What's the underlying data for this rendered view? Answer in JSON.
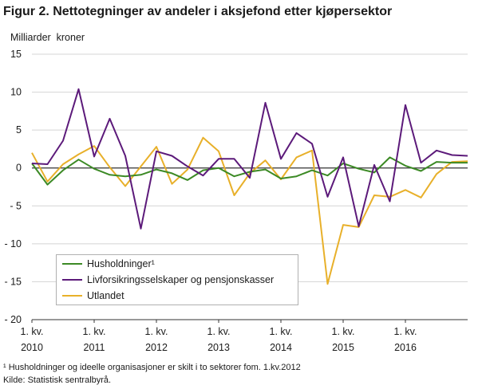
{
  "figure": {
    "title": "Figur 2. Nettotegninger av andeler i aksjefond etter kjøpersektor",
    "footnote": "¹ Husholdninger og ideelle organisasjoner er skilt i to sektorer fom. 1.kv.2012",
    "source": "Kilde: Statistisk sentralbyrå."
  },
  "chart_data": {
    "type": "line",
    "ylabel": "Milliarder  kroner",
    "ylim": [
      -20,
      15
    ],
    "yticks": [
      "15",
      "10",
      "5",
      "0",
      "- 5",
      "- 10",
      "- 15",
      "- 20"
    ],
    "ytick_values": [
      15,
      10,
      5,
      0,
      -5,
      -10,
      -15,
      -20
    ],
    "grid": true,
    "legend_position": "bottom-left",
    "x": [
      "2010Q1",
      "2010Q2",
      "2010Q3",
      "2010Q4",
      "2011Q1",
      "2011Q2",
      "2011Q3",
      "2011Q4",
      "2012Q1",
      "2012Q2",
      "2012Q3",
      "2012Q4",
      "2013Q1",
      "2013Q2",
      "2013Q3",
      "2013Q4",
      "2014Q1",
      "2014Q2",
      "2014Q3",
      "2014Q4",
      "2015Q1",
      "2015Q2",
      "2015Q3",
      "2015Q4",
      "2016Q1",
      "2016Q2",
      "2016Q3",
      "2016Q4",
      "2017Q1"
    ],
    "xticks": [
      {
        "kv": "1. kv.",
        "year": "2010"
      },
      {
        "kv": "1. kv.",
        "year": "2011"
      },
      {
        "kv": "1. kv.",
        "year": "2012"
      },
      {
        "kv": "1. kv.",
        "year": "2013"
      },
      {
        "kv": "1. kv.",
        "year": "2014"
      },
      {
        "kv": "1. kv.",
        "year": "2015"
      },
      {
        "kv": "1. kv.",
        "year": "2016"
      }
    ],
    "series": [
      {
        "name": "Husholdninger¹",
        "color": "#3c8a25",
        "values": [
          0.6,
          -2.2,
          -0.3,
          1.1,
          -0.1,
          -0.9,
          -1.1,
          -0.9,
          -0.2,
          -0.7,
          -1.6,
          -0.3,
          0.0,
          -1.1,
          -0.5,
          -0.2,
          -1.4,
          -1.1,
          -0.3,
          -1.0,
          0.6,
          -0.1,
          -0.6,
          1.4,
          0.3,
          -0.4,
          0.8,
          0.7,
          0.7
        ]
      },
      {
        "name": "Livforsikringsselskaper og pensjonskasser",
        "color": "#5c1a7a",
        "values": [
          0.6,
          0.5,
          3.6,
          10.4,
          1.5,
          6.5,
          1.6,
          -8.0,
          2.2,
          1.6,
          0.2,
          -1.0,
          1.2,
          1.2,
          -1.3,
          8.6,
          1.2,
          4.6,
          3.2,
          -3.8,
          1.4,
          -7.7,
          0.4,
          -4.4,
          8.3,
          0.7,
          2.3,
          1.7,
          1.6
        ]
      },
      {
        "name": "Utlandet",
        "color": "#e8b02a",
        "values": [
          2.0,
          -1.8,
          0.5,
          1.8,
          2.9,
          0.1,
          -2.4,
          0.2,
          2.8,
          -2.1,
          -0.2,
          4.0,
          2.2,
          -3.6,
          -0.7,
          1.0,
          -1.5,
          1.4,
          2.3,
          -15.3,
          -7.5,
          -7.8,
          -3.6,
          -3.8,
          -2.9,
          -3.9,
          -0.8,
          0.8,
          0.9
        ]
      }
    ]
  }
}
